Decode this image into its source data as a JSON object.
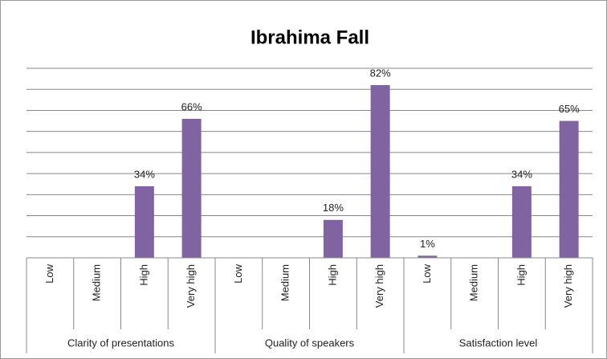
{
  "chart_data": {
    "type": "bar",
    "title": "Ibrahima Fall",
    "color": "#8064a2",
    "ylim": [
      0,
      90
    ],
    "yticks": [
      0,
      10,
      20,
      30,
      40,
      50,
      60,
      70,
      80,
      90
    ],
    "grid": true,
    "groups": [
      {
        "name": "Clarity of presentations",
        "categories": [
          "Low",
          "Medium",
          "High",
          "Very high"
        ],
        "values": [
          0,
          0,
          34,
          66
        ],
        "value_labels": [
          null,
          null,
          "34%",
          "66%"
        ]
      },
      {
        "name": "Quality of speakers",
        "categories": [
          "Low",
          "Medium",
          "High",
          "Very high"
        ],
        "values": [
          0,
          0,
          18,
          82
        ],
        "value_labels": [
          null,
          null,
          "18%",
          "82%"
        ]
      },
      {
        "name": "Satisfaction level",
        "categories": [
          "Low",
          "Medium",
          "High",
          "Very high"
        ],
        "values": [
          1,
          0,
          34,
          65
        ],
        "value_labels": [
          "1%",
          null,
          "34%",
          "65%"
        ]
      }
    ]
  }
}
